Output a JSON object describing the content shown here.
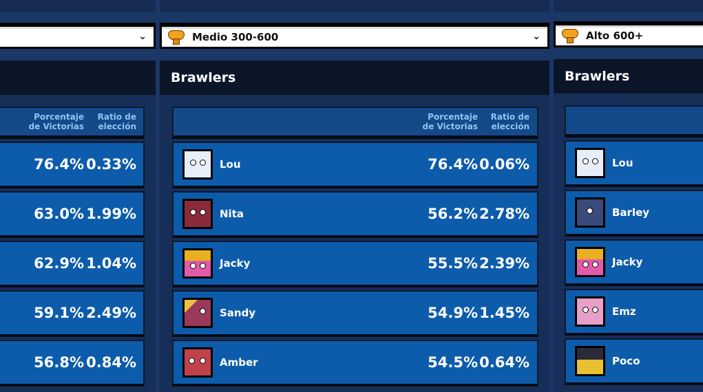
{
  "columns": [
    {
      "dropdown": {
        "label": "",
        "icon": "trophy-icon"
      },
      "title": "",
      "headers": {
        "win_rate": "Porcentaje de Victorias",
        "win_rate_l1": "Porcentaje",
        "win_rate_l2": "de Victorias",
        "pick_rate_l1": "Ratio de",
        "pick_rate_l2": "elección"
      },
      "rows": [
        {
          "name": "",
          "win": "76.4%",
          "pick": "0.33%"
        },
        {
          "name": "",
          "win": "63.0%",
          "pick": "1.99%"
        },
        {
          "name": "",
          "win": "62.9%",
          "pick": "1.04%"
        },
        {
          "name": "",
          "win": "59.1%",
          "pick": "2.49%"
        },
        {
          "name": "",
          "win": "56.8%",
          "pick": "0.84%"
        }
      ]
    },
    {
      "dropdown": {
        "label": "Medio 300-600",
        "icon": "trophy-icon"
      },
      "title": "Brawlers",
      "headers": {
        "win_rate_l1": "Porcentaje",
        "win_rate_l2": "de Victorias",
        "pick_rate_l1": "Ratio de",
        "pick_rate_l2": "elección"
      },
      "rows": [
        {
          "name": "Lou",
          "win": "76.4%",
          "pick": "0.06%",
          "color": "#e8eef8"
        },
        {
          "name": "Nita",
          "win": "56.2%",
          "pick": "2.78%",
          "color": "#8a2a3a"
        },
        {
          "name": "Jacky",
          "win": "55.5%",
          "pick": "2.39%",
          "color": "#e25aa8"
        },
        {
          "name": "Sandy",
          "win": "54.9%",
          "pick": "1.45%",
          "color": "#9a3a5a"
        },
        {
          "name": "Amber",
          "win": "54.5%",
          "pick": "0.64%",
          "color": "#c2424a"
        }
      ]
    },
    {
      "dropdown": {
        "label": "Alto 600+",
        "icon": "trophy-icon"
      },
      "title": "Brawlers",
      "rows": [
        {
          "name": "Lou",
          "color": "#e8eef8"
        },
        {
          "name": "Barley",
          "color": "#3a4a7a"
        },
        {
          "name": "Jacky",
          "color": "#e25aa8"
        },
        {
          "name": "Emz",
          "color": "#e8a0c8"
        },
        {
          "name": "Poco",
          "color": "#2a2a3a"
        }
      ]
    }
  ]
}
